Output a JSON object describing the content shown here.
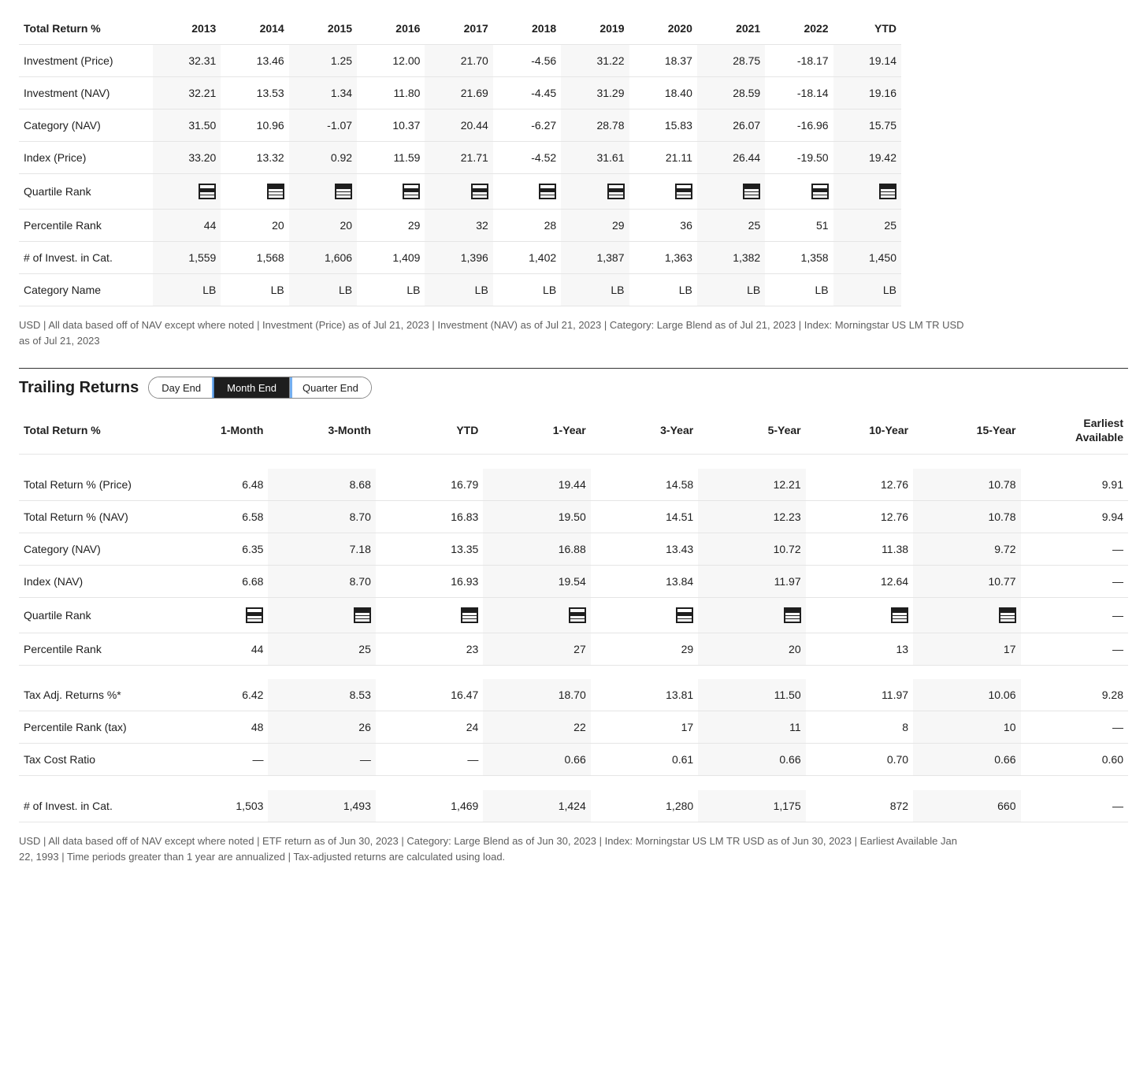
{
  "annual": {
    "header_label": "Total Return %",
    "years": [
      "2013",
      "2014",
      "2015",
      "2016",
      "2017",
      "2018",
      "2019",
      "2020",
      "2021",
      "2022",
      "YTD"
    ],
    "rows": [
      {
        "label": "Investment (Price)",
        "values": [
          "32.31",
          "13.46",
          "1.25",
          "12.00",
          "21.70",
          "-4.56",
          "31.22",
          "18.37",
          "28.75",
          "-18.17",
          "19.14"
        ]
      },
      {
        "label": "Investment (NAV)",
        "values": [
          "32.21",
          "13.53",
          "1.34",
          "11.80",
          "21.69",
          "-4.45",
          "31.29",
          "18.40",
          "28.59",
          "-18.14",
          "19.16"
        ]
      },
      {
        "label": "Category (NAV)",
        "values": [
          "31.50",
          "10.96",
          "-1.07",
          "10.37",
          "20.44",
          "-6.27",
          "28.78",
          "15.83",
          "26.07",
          "-16.96",
          "15.75"
        ]
      },
      {
        "label": "Index (Price)",
        "values": [
          "33.20",
          "13.32",
          "0.92",
          "11.59",
          "21.71",
          "-4.52",
          "31.61",
          "21.11",
          "26.44",
          "-19.50",
          "19.42"
        ]
      }
    ],
    "quartile_label": "Quartile Rank",
    "quartile_values": [
      2,
      1,
      1,
      2,
      2,
      2,
      2,
      2,
      1,
      2,
      1
    ],
    "percentile_label": "Percentile Rank",
    "percentile_values": [
      "44",
      "20",
      "20",
      "29",
      "32",
      "28",
      "29",
      "36",
      "25",
      "51",
      "25"
    ],
    "numinvest_label": "# of Invest. in Cat.",
    "numinvest_values": [
      "1,559",
      "1,568",
      "1,606",
      "1,409",
      "1,396",
      "1,402",
      "1,387",
      "1,363",
      "1,382",
      "1,358",
      "1,450"
    ],
    "catname_label": "Category Name",
    "catname_values": [
      "LB",
      "LB",
      "LB",
      "LB",
      "LB",
      "LB",
      "LB",
      "LB",
      "LB",
      "LB",
      "LB"
    ],
    "footnote": "USD | All data based off of NAV except where noted | Investment (Price) as of Jul 21, 2023 | Investment (NAV) as of Jul 21, 2023 | Category: Large Blend as of Jul 21, 2023 | Index: Morningstar US LM TR USD as of Jul 21, 2023"
  },
  "trailing": {
    "section_title": "Trailing Returns",
    "tabs": [
      "Day End",
      "Month End",
      "Quarter End"
    ],
    "active_tab": 1,
    "header_label": "Total Return %",
    "columns": [
      "1-Month",
      "3-Month",
      "YTD",
      "1-Year",
      "3-Year",
      "5-Year",
      "10-Year",
      "15-Year",
      "Earliest Available"
    ],
    "rows_top": [
      {
        "label": "Total Return % (Price)",
        "values": [
          "6.48",
          "8.68",
          "16.79",
          "19.44",
          "14.58",
          "12.21",
          "12.76",
          "10.78",
          "9.91"
        ]
      },
      {
        "label": "Total Return % (NAV)",
        "values": [
          "6.58",
          "8.70",
          "16.83",
          "19.50",
          "14.51",
          "12.23",
          "12.76",
          "10.78",
          "9.94"
        ]
      },
      {
        "label": "Category (NAV)",
        "values": [
          "6.35",
          "7.18",
          "13.35",
          "16.88",
          "13.43",
          "10.72",
          "11.38",
          "9.72",
          "—"
        ]
      },
      {
        "label": "Index (NAV)",
        "values": [
          "6.68",
          "8.70",
          "16.93",
          "19.54",
          "13.84",
          "11.97",
          "12.64",
          "10.77",
          "—"
        ]
      }
    ],
    "quartile_label": "Quartile Rank",
    "quartile_values": [
      2,
      1,
      1,
      2,
      2,
      1,
      1,
      1,
      null
    ],
    "percentile_label": "Percentile Rank",
    "percentile_values": [
      "44",
      "25",
      "23",
      "27",
      "29",
      "20",
      "13",
      "17",
      "—"
    ],
    "rows_tax": [
      {
        "label": "Tax Adj. Returns %*",
        "values": [
          "6.42",
          "8.53",
          "16.47",
          "18.70",
          "13.81",
          "11.50",
          "11.97",
          "10.06",
          "9.28"
        ]
      },
      {
        "label": "Percentile Rank (tax)",
        "values": [
          "48",
          "26",
          "24",
          "22",
          "17",
          "11",
          "8",
          "10",
          "—"
        ]
      },
      {
        "label": "Tax Cost Ratio",
        "values": [
          "—",
          "—",
          "—",
          "0.66",
          "0.61",
          "0.66",
          "0.70",
          "0.66",
          "0.60"
        ]
      }
    ],
    "numinvest_label": "# of Invest. in Cat.",
    "numinvest_values": [
      "1,503",
      "1,493",
      "1,469",
      "1,424",
      "1,280",
      "1,175",
      "872",
      "660",
      "—"
    ],
    "footnote": "USD | All data based off of NAV except where noted | ETF return as of Jun 30, 2023 | Category: Large Blend as of Jun 30, 2023 | Index: Morningstar US LM TR USD as of Jun 30, 2023 | Earliest Available Jan 22, 1993 | Time periods greater than 1 year are annualized | Tax-adjusted returns are calculated using load."
  }
}
